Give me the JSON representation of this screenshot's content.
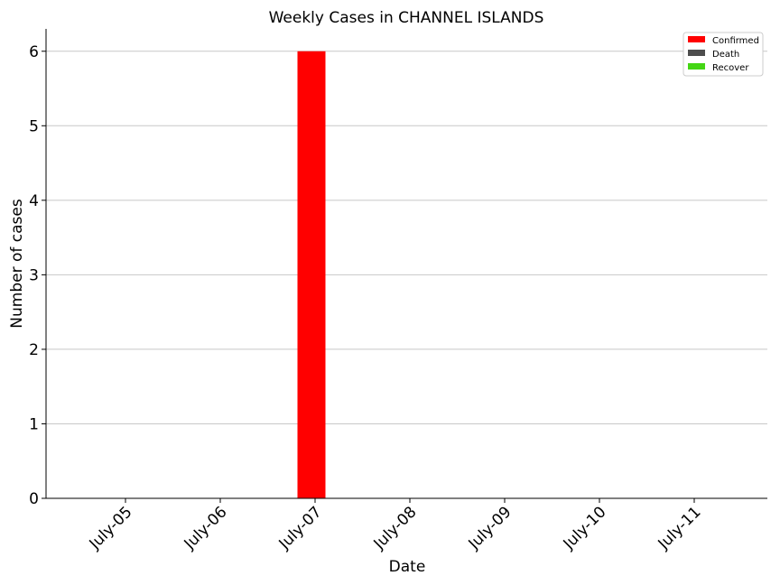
{
  "chart_data": {
    "type": "bar",
    "title": "Weekly Cases in CHANNEL ISLANDS",
    "xlabel": "Date",
    "ylabel": "Number of cases",
    "categories": [
      "July-05",
      "July-06",
      "July-07",
      "July-08",
      "July-09",
      "July-10",
      "July-11"
    ],
    "series": [
      {
        "name": "Confirmed",
        "color": "#ff0000",
        "values": [
          0,
          0,
          6,
          0,
          0,
          0,
          0
        ]
      },
      {
        "name": "Death",
        "color": "#4d4d4d",
        "values": [
          0,
          0,
          0,
          0,
          0,
          0,
          0
        ]
      },
      {
        "name": "Recover",
        "color": "#44d614",
        "values": [
          0,
          0,
          0,
          0,
          0,
          0,
          0
        ]
      }
    ],
    "ylim": [
      0,
      6.3
    ],
    "yticks": [
      0,
      1,
      2,
      3,
      4,
      5,
      6
    ],
    "grid": "y",
    "legend_position": "top-right"
  }
}
